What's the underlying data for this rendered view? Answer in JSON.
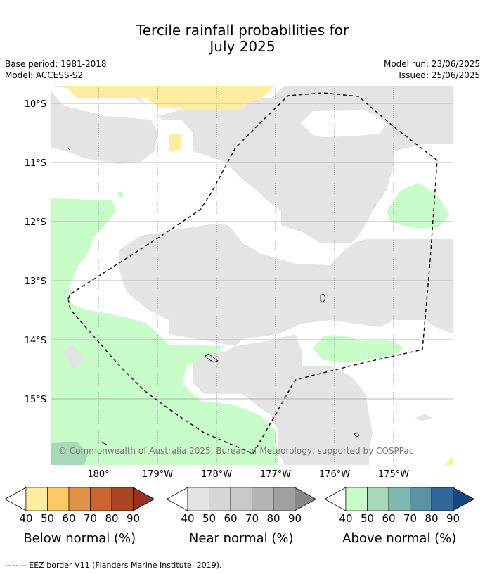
{
  "title_line1": "Tercile rainfall probabilities for",
  "title_line2": "July 2025",
  "meta": {
    "base_period": "Base period: 1981-2018",
    "model": "Model: ACCESS-S2",
    "model_run": "Model run: 23/06/2025",
    "issued": "Issued: 25/06/2025"
  },
  "map": {
    "lat_ticks": [
      "10°S",
      "11°S",
      "12°S",
      "13°S",
      "14°S",
      "15°S"
    ],
    "lon_ticks": [
      "180°",
      "179°W",
      "178°W",
      "177°W",
      "176°W",
      "175°W"
    ],
    "copyright": "© Commonwealth of Australia 2025, Bureau of Meteorology, supported by COSPPac"
  },
  "colorbars": [
    {
      "title": "Below normal (%)",
      "ticks": [
        "40",
        "50",
        "60",
        "70",
        "80",
        "90"
      ],
      "colors": [
        "#ffffff",
        "#feeca0",
        "#fec965",
        "#e09245",
        "#cc6430",
        "#ab4524",
        "#963126"
      ]
    },
    {
      "title": "Near normal (%)",
      "ticks": [
        "40",
        "50",
        "60",
        "70",
        "80",
        "90"
      ],
      "colors": [
        "#ffffff",
        "#e4e4e4",
        "#d6d6d6",
        "#c8c8c8",
        "#b4b4b4",
        "#a0a0a0",
        "#868686"
      ]
    },
    {
      "title": "Above normal (%)",
      "ticks": [
        "40",
        "50",
        "60",
        "70",
        "80",
        "90"
      ],
      "colors": [
        "#ffffff",
        "#c8fcc8",
        "#a6d8b9",
        "#82b8b2",
        "#5b93a4",
        "#326899",
        "#13477f"
      ]
    }
  ],
  "footer": "--  --  -- EEZ border V11 (Flanders Marine Institute, 2019).",
  "colors": {
    "near_normal": "#e4e4e4",
    "above_normal": "#c8fcc8",
    "above_normal_strong": "#a6d8b9",
    "below_normal": "#feeca0"
  }
}
